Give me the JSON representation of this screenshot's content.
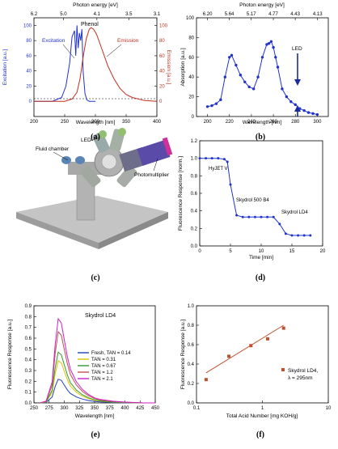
{
  "chart_data": [
    {
      "panel": "(a)",
      "type": "line",
      "title": "Phenol",
      "xlabel": "Wavelength [nm]",
      "ylabel_left": "Excitation [a.u.]",
      "ylabel_right": "Emission [a.u.]",
      "top_axis_label": "Photon energy [eV]",
      "xlim": [
        200,
        400
      ],
      "ylim": [
        -20,
        110
      ],
      "xticks": [
        "200",
        "250",
        "300",
        "350",
        "400"
      ],
      "yticks": [
        "0",
        "20",
        "40",
        "60",
        "80",
        "100"
      ],
      "top_ticks": [
        "6.2",
        "5.0",
        "4.1",
        "3.5",
        "3.1"
      ],
      "series": [
        {
          "name": "Excitation",
          "color": "#2233cc",
          "x": [
            200,
            230,
            245,
            252,
            258,
            262,
            266,
            268,
            270,
            272,
            274,
            276,
            278,
            280,
            283,
            286,
            290,
            300
          ],
          "y": [
            0,
            0,
            5,
            20,
            50,
            85,
            93,
            60,
            100,
            70,
            90,
            80,
            95,
            40,
            10,
            2,
            0,
            0
          ]
        },
        {
          "name": "Emission",
          "color": "#c03020",
          "x": [
            200,
            250,
            262,
            270,
            275,
            280,
            285,
            290,
            293,
            297,
            302,
            310,
            320,
            330,
            340,
            350,
            360,
            380,
            400
          ],
          "y": [
            0,
            0,
            3,
            12,
            30,
            58,
            82,
            95,
            97,
            95,
            88,
            70,
            47,
            30,
            17,
            9,
            5,
            1,
            0
          ]
        }
      ]
    },
    {
      "panel": "(b)",
      "type": "line",
      "xlabel": "Wavelength [nm]",
      "ylabel": "Absorption [a.u.]",
      "top_axis_label": "Photon energy [eV]",
      "annotation": "LED",
      "xlim": [
        190,
        310
      ],
      "ylim": [
        0,
        100
      ],
      "xticks": [
        "200",
        "220",
        "240",
        "260",
        "280",
        "300"
      ],
      "yticks": [
        "0",
        "20",
        "40",
        "60",
        "80",
        "100"
      ],
      "top_ticks": [
        "6.20",
        "5.64",
        "5.17",
        "4.77",
        "4.43",
        "4.13"
      ],
      "series": [
        {
          "name": "Absorption",
          "color": "#2233cc",
          "x": [
            200,
            204,
            208,
            212,
            216,
            220,
            222,
            226,
            230,
            234,
            238,
            242,
            246,
            250,
            254,
            256,
            258,
            260,
            262,
            264,
            268,
            272,
            276,
            280,
            284,
            288,
            292,
            296,
            300
          ],
          "y": [
            10,
            11,
            13,
            17,
            40,
            60,
            62,
            52,
            42,
            35,
            30,
            28,
            40,
            60,
            73,
            74,
            76,
            70,
            60,
            50,
            28,
            20,
            15,
            12,
            8,
            6,
            4,
            3,
            2
          ]
        }
      ]
    },
    {
      "panel": "(d)",
      "type": "line",
      "xlabel": "Time [min]",
      "ylabel": "Fluorescence Response [norm.]",
      "xlim": [
        0,
        20
      ],
      "ylim": [
        0,
        1.2
      ],
      "xticks": [
        "0",
        "5",
        "10",
        "15",
        "20"
      ],
      "yticks": [
        "0.0",
        "0.2",
        "0.4",
        "0.6",
        "0.8",
        "1.0",
        "1.2"
      ],
      "annotations": [
        "HyJET V",
        "Skydrol 500 B4",
        "Skydrol LD4"
      ],
      "series": [
        {
          "name": "Response",
          "color": "#2233cc",
          "x": [
            0,
            1,
            2,
            3,
            4,
            4.5,
            5,
            6,
            7,
            8,
            9,
            10,
            11,
            12,
            13,
            14,
            15,
            16,
            17,
            18
          ],
          "y": [
            1.0,
            1.0,
            1.0,
            1.0,
            0.99,
            0.96,
            0.7,
            0.35,
            0.33,
            0.33,
            0.33,
            0.33,
            0.33,
            0.33,
            0.25,
            0.14,
            0.12,
            0.12,
            0.12,
            0.12
          ]
        }
      ]
    },
    {
      "panel": "(e)",
      "type": "line",
      "title": "Skydrol LD4",
      "xlabel": "Wavelength [nm]",
      "ylabel": "Fluorescence Response [a.u.]",
      "xlim": [
        250,
        450
      ],
      "ylim": [
        0,
        0.9
      ],
      "xticks": [
        "250",
        "275",
        "300",
        "325",
        "350",
        "375",
        "400",
        "425",
        "450"
      ],
      "yticks": [
        "0.0",
        "0.1",
        "0.2",
        "0.3",
        "0.4",
        "0.5",
        "0.6",
        "0.7",
        "0.8",
        "0.9"
      ],
      "x": [
        260,
        270,
        280,
        285,
        290,
        295,
        300,
        305,
        310,
        320,
        330,
        340,
        350,
        360,
        380,
        400,
        430,
        450
      ],
      "series": [
        {
          "name": "Fresh, TAN = 0.14",
          "color": "#1f3fbf",
          "peak": 0.22
        },
        {
          "name": "TAN = 0.31",
          "color": "#d9c400",
          "peak": 0.39
        },
        {
          "name": "TAN = 0.67",
          "color": "#2f9a2f",
          "peak": 0.47
        },
        {
          "name": "TAN = 1.2",
          "color": "#c05050",
          "peak": 0.66
        },
        {
          "name": "TAN = 2.1",
          "color": "#d020c8",
          "peak": 0.78
        }
      ],
      "shape": [
        0,
        0.02,
        0.25,
        0.7,
        1.0,
        0.95,
        0.75,
        0.55,
        0.4,
        0.25,
        0.16,
        0.1,
        0.06,
        0.04,
        0.02,
        0.01,
        0,
        0
      ]
    },
    {
      "panel": "(f)",
      "type": "scatter",
      "xlabel": "Total Acid Number [mg KOH/g]",
      "ylabel": "Fluorescence Response [a.u.]",
      "xscale": "log",
      "xlim": [
        0.1,
        10
      ],
      "ylim": [
        0,
        1
      ],
      "xticks": [
        "0.1",
        "1",
        "10"
      ],
      "yticks": [
        "0.0",
        "0.2",
        "0.4",
        "0.6",
        "0.8",
        "1.0"
      ],
      "legend": [
        "Skydrol LD4,",
        "λ = 295nm"
      ],
      "points": {
        "x": [
          0.14,
          0.31,
          0.67,
          1.2,
          2.1
        ],
        "y": [
          0.24,
          0.48,
          0.59,
          0.66,
          0.77
        ]
      },
      "fit": {
        "x": [
          0.14,
          2.1
        ],
        "y": [
          0.31,
          0.8
        ]
      },
      "color": "#c05030"
    }
  ],
  "photo": {
    "labels": {
      "fluid": "Fluid chamber",
      "led": "LED",
      "pm": "Photomultiplier"
    }
  },
  "captions": [
    "(a)",
    "(b)",
    "(c)",
    "(d)",
    "(e)",
    "(f)"
  ]
}
